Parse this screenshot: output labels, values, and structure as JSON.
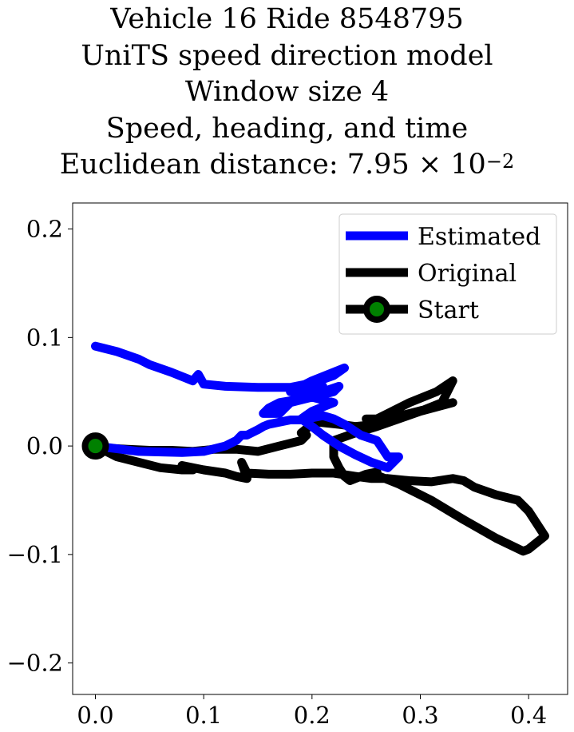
{
  "title": {
    "line1": "Vehicle 16 Ride 8548795",
    "line2": "UniTS speed direction model",
    "line3": "Window size 4",
    "line4": "Speed, heading, and time",
    "line5_prefix": "Euclidean distance: 7.95 × 10",
    "line5_exp": "−2"
  },
  "chart_data": {
    "type": "line",
    "xlim": [
      -0.021,
      0.436
    ],
    "ylim": [
      -0.229,
      0.224
    ],
    "xticks": [
      0.0,
      0.1,
      0.2,
      0.3,
      0.4
    ],
    "xtick_labels": [
      "0.0",
      "0.1",
      "0.2",
      "0.3",
      "0.4"
    ],
    "yticks": [
      0.2,
      0.1,
      0.0,
      -0.1,
      -0.2
    ],
    "ytick_labels": [
      "0.2",
      "0.1",
      "0.0",
      "−0.1",
      "−0.2"
    ],
    "grid": false,
    "legend_position": "top-right",
    "series": [
      {
        "name": "Estimated",
        "color": "#0000ff",
        "x": [
          0.0,
          0.04,
          0.08,
          0.1,
          0.12,
          0.13,
          0.135,
          0.14,
          0.15,
          0.155,
          0.16,
          0.17,
          0.18,
          0.19,
          0.2,
          0.21,
          0.22,
          0.23,
          0.245,
          0.26,
          0.27,
          0.28,
          0.27,
          0.255,
          0.24,
          0.225,
          0.21,
          0.2,
          0.19,
          0.2,
          0.22,
          0.2,
          0.18,
          0.17,
          0.19,
          0.2,
          0.21,
          0.19,
          0.17,
          0.155,
          0.16,
          0.17,
          0.2,
          0.22,
          0.225,
          0.21,
          0.19,
          0.18,
          0.2,
          0.23,
          0.22,
          0.2,
          0.18,
          0.15,
          0.12,
          0.1,
          0.095,
          0.09,
          0.07,
          0.05,
          0.04,
          0.02,
          0.0
        ],
        "y": [
          0.0,
          -0.005,
          -0.006,
          -0.005,
          0.0,
          0.005,
          0.01,
          0.01,
          0.015,
          0.018,
          0.02,
          0.022,
          0.024,
          0.024,
          0.026,
          0.028,
          0.025,
          0.02,
          0.01,
          0.005,
          -0.01,
          -0.01,
          -0.02,
          -0.015,
          -0.008,
          0.0,
          0.01,
          0.018,
          0.025,
          0.032,
          0.04,
          0.045,
          0.04,
          0.035,
          0.045,
          0.05,
          0.055,
          0.05,
          0.03,
          0.03,
          0.035,
          0.04,
          0.045,
          0.05,
          0.055,
          0.05,
          0.055,
          0.05,
          0.06,
          0.072,
          0.065,
          0.058,
          0.054,
          0.054,
          0.055,
          0.057,
          0.066,
          0.06,
          0.068,
          0.075,
          0.08,
          0.087,
          0.092
        ]
      },
      {
        "name": "Original",
        "color": "#000000",
        "x": [
          0.0,
          0.02,
          0.04,
          0.06,
          0.08,
          0.09,
          0.08,
          0.1,
          0.12,
          0.13,
          0.14,
          0.135,
          0.14,
          0.16,
          0.18,
          0.2,
          0.22,
          0.24,
          0.255,
          0.27,
          0.29,
          0.31,
          0.33,
          0.34,
          0.35,
          0.37,
          0.39,
          0.4,
          0.415,
          0.4,
          0.395,
          0.37,
          0.34,
          0.31,
          0.28,
          0.26,
          0.26,
          0.25,
          0.235,
          0.23,
          0.225,
          0.22,
          0.22,
          0.24,
          0.26,
          0.28,
          0.3,
          0.32,
          0.33,
          0.315,
          0.29,
          0.27,
          0.26,
          0.25,
          0.255,
          0.27,
          0.29,
          0.31,
          0.33,
          0.3,
          0.28,
          0.26,
          0.24,
          0.225,
          0.205,
          0.2,
          0.19,
          0.195,
          0.19,
          0.17,
          0.15,
          0.13,
          0.11,
          0.09,
          0.07,
          0.05,
          0.03,
          0.01,
          0.0
        ],
        "y": [
          0.0,
          -0.01,
          -0.015,
          -0.02,
          -0.022,
          -0.022,
          -0.018,
          -0.022,
          -0.025,
          -0.028,
          -0.03,
          -0.015,
          -0.025,
          -0.026,
          -0.026,
          -0.025,
          -0.025,
          -0.028,
          -0.03,
          -0.03,
          -0.032,
          -0.033,
          -0.03,
          -0.032,
          -0.038,
          -0.045,
          -0.05,
          -0.06,
          -0.083,
          -0.095,
          -0.097,
          -0.085,
          -0.068,
          -0.05,
          -0.035,
          -0.027,
          -0.024,
          -0.026,
          -0.032,
          -0.028,
          -0.02,
          -0.01,
          0.005,
          0.012,
          0.018,
          0.025,
          0.032,
          0.04,
          0.06,
          0.05,
          0.04,
          0.03,
          0.025,
          0.025,
          0.02,
          0.025,
          0.03,
          0.035,
          0.04,
          0.032,
          0.025,
          0.02,
          0.018,
          0.02,
          0.022,
          0.02,
          0.012,
          0.01,
          0.005,
          0.0,
          -0.005,
          -0.003,
          -0.003,
          -0.005,
          -0.004,
          -0.004,
          -0.003,
          -0.002,
          0.0
        ]
      },
      {
        "name": "Start",
        "color": "#000000",
        "marker_color": "#008000",
        "x": [
          0.0
        ],
        "y": [
          0.0
        ]
      }
    ]
  }
}
